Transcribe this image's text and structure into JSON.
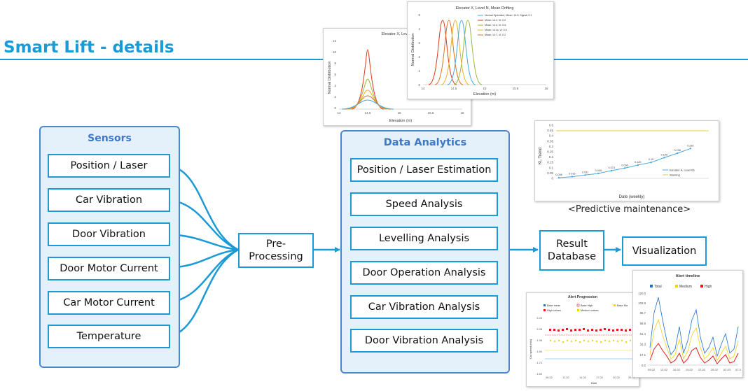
{
  "header": {
    "title": "Smart Lift - details"
  },
  "sensors": {
    "title": "Sensors",
    "items": [
      "Position / Laser",
      "Car Vibration",
      "Door Vibration",
      "Door Motor Current",
      "Car Motor Current",
      "Temperature"
    ]
  },
  "preprocessing": {
    "line1": "Pre-",
    "line2": "Processing"
  },
  "analytics": {
    "title": "Data Analytics",
    "items": [
      "Position / Laser Estimation",
      "Speed Analysis",
      "Levelling Analysis",
      "Door Operation Analysis",
      "Car Vibration Analysis",
      "Door Vibration Analysis"
    ]
  },
  "result_db": {
    "line1": "Result",
    "line2": "Database"
  },
  "visualization": {
    "label": "Visualization"
  },
  "thumbnails": {
    "dist_back": {
      "title": "Elevator X, Level I",
      "xlabel": "Elevation (m)",
      "ylabel": "Normal Distribution",
      "yticks": [
        "12",
        "10",
        "8",
        "6",
        "4",
        "2",
        "0"
      ],
      "xticks": [
        "14",
        "14.5",
        "15",
        "15.5",
        "16"
      ]
    },
    "dist_front": {
      "title": "Elevator X, Level N, Mean Drifting",
      "xlabel": "Elevation (m)",
      "ylabel": "Normal Distribution",
      "yticks": [
        "5",
        "4",
        "3",
        "2",
        "1",
        "0"
      ],
      "xticks": [
        "14",
        "14.5",
        "15",
        "15.5",
        "16"
      ],
      "legend": [
        "Normal Operation, Mean: 14.5, Sigma: 0.1",
        "Mean: 14.4, Vi: 0.2",
        "Mean: 14.4, Vi: 0.3",
        "Mean: 14.4v, Vi: 0.5",
        "Mean: 14.7, Vi: 0.2"
      ],
      "colors": [
        "#4aa8e0",
        "#e03a1a",
        "#9bb83a",
        "#f0b020",
        "#e07020"
      ]
    },
    "trend": {
      "ylabel": "KL Trend",
      "xlabel": "Date (weekly)",
      "yticks": [
        "0.5",
        "0.45",
        "0.4",
        "0.35",
        "0.3",
        "0.25",
        "0.2",
        "0.15",
        "0.1",
        "0.05",
        "0"
      ],
      "point_labels": [
        "0.006",
        "0.016",
        "0.031",
        "0.046",
        "0.073",
        "0.096",
        "0.125",
        "0.15",
        "0.195",
        "0.236",
        "0.281"
      ],
      "legend": [
        "Elevator A, Level 06",
        "Warning"
      ],
      "caption": "<Predictive maintenance>"
    },
    "progression": {
      "title": "Alert Progression",
      "legend": [
        "Base mean",
        "Base High",
        "Base Ma",
        "High values",
        "Medium values"
      ],
      "yticks": [
        "2.20",
        "2.08",
        "1.96",
        "1.84",
        "1.72",
        "1.60"
      ],
      "ylabel": "Car speed (m/s)",
      "xlabel": "Date",
      "xticks": [
        "08-02",
        "11-02",
        "14-02",
        "17-02",
        "20-02",
        "26-02"
      ]
    },
    "timeline": {
      "title": "Alert timeline",
      "legend": [
        "Total",
        "Medium",
        "High"
      ],
      "yticks": [
        "120.0",
        "102.9",
        "85.7",
        "68.6",
        "51.4",
        "34.3",
        "17.1",
        "0.0"
      ],
      "xticks": [
        "09-02",
        "13-02",
        "16-02",
        "19-02",
        "22-02",
        "25-02",
        "02-03",
        "07-0"
      ],
      "colors": {
        "total": "#1f6fd1",
        "medium": "#f3d21b",
        "high": "#e21b1b"
      }
    }
  }
}
